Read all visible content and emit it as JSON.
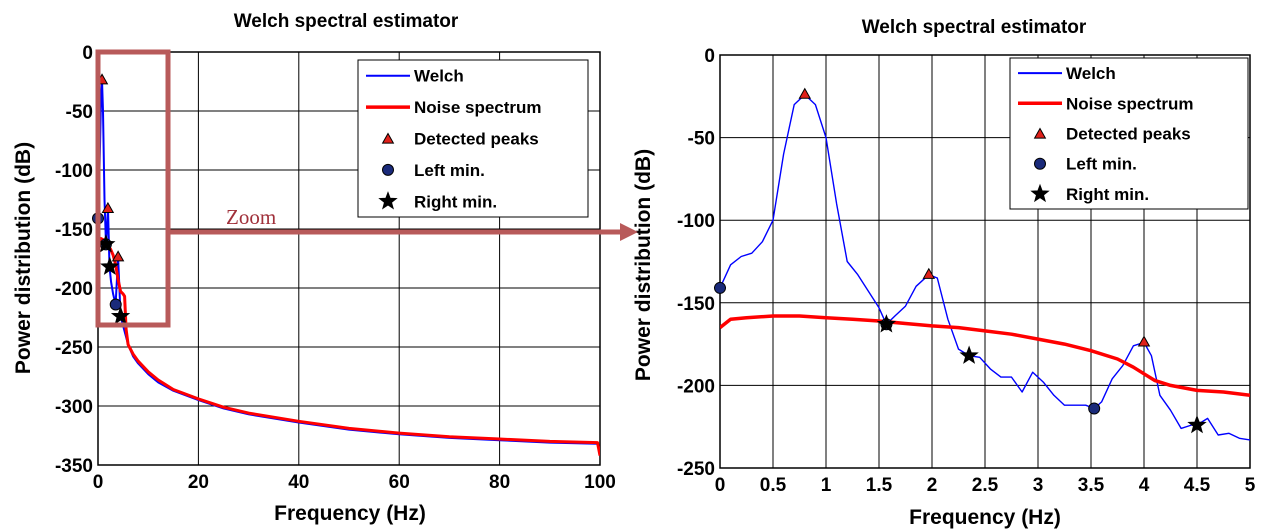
{
  "annotation": {
    "zoom_label": "Zoom",
    "arrow_color": "#b85a5a"
  },
  "colors": {
    "welch": "#0000ff",
    "noise": "#ff0000",
    "peak_fill": "#e0201a",
    "left_min_fill": "#1a2a7a",
    "star": "#000000",
    "grid": "#000000"
  },
  "chart_data": [
    {
      "type": "line",
      "title": "Welch spectral estimator",
      "xlabel": "Frequency (Hz)",
      "ylabel": "Power distribution (dB)",
      "xlim": [
        0,
        100
      ],
      "ylim": [
        -350,
        0
      ],
      "xticks": [
        "0",
        "20",
        "40",
        "60",
        "80",
        "100"
      ],
      "yticks": [
        "0",
        "-50",
        "-100",
        "-150",
        "-200",
        "-250",
        "-300",
        "-350"
      ],
      "grid": true,
      "legend_position": "top-right",
      "legend": [
        "Welch",
        "Noise spectrum",
        "Detected peaks",
        "Left min.",
        "Right min."
      ],
      "series": [
        {
          "name": "Welch",
          "x": [
            0,
            0.3,
            0.6,
            0.8,
            1.0,
            1.3,
            1.6,
            2.0,
            2.3,
            2.6,
            3.0,
            3.5,
            4.0,
            4.5,
            5,
            6,
            7,
            8,
            10,
            12,
            15,
            20,
            25,
            30,
            40,
            50,
            60,
            70,
            80,
            90,
            99.5,
            100
          ],
          "y": [
            -141,
            -100,
            -40,
            -24,
            -50,
            -125,
            -163,
            -133,
            -182,
            -195,
            -205,
            -214,
            -174,
            -224,
            -232,
            -248,
            -258,
            -264,
            -273,
            -280,
            -287,
            -295,
            -302,
            -307,
            -314,
            -320,
            -324,
            -327,
            -329,
            -331,
            -332,
            -337
          ]
        },
        {
          "name": "Noise spectrum",
          "x": [
            0,
            0.5,
            1.0,
            1.5,
            2.0,
            2.5,
            3.0,
            3.5,
            4.0,
            4.5,
            5,
            5.3,
            5.6,
            6,
            7,
            8,
            10,
            12,
            15,
            20,
            25,
            30,
            40,
            50,
            60,
            70,
            80,
            90,
            99.5,
            100
          ],
          "y": [
            -165,
            -158,
            -159,
            -161,
            -164,
            -167,
            -172,
            -180,
            -193,
            -203,
            -205,
            -207,
            -235,
            -248,
            -256,
            -262,
            -271,
            -278,
            -286,
            -294,
            -301,
            -306,
            -313,
            -319,
            -323,
            -326,
            -328,
            -330,
            -331,
            -342
          ]
        }
      ],
      "detected_peaks": [
        {
          "x": 0.8,
          "y": -24
        },
        {
          "x": 1.97,
          "y": -133
        },
        {
          "x": 4.0,
          "y": -174
        }
      ],
      "left_min": [
        {
          "x": 0.0,
          "y": -141
        },
        {
          "x": 1.57,
          "y": -163
        },
        {
          "x": 3.53,
          "y": -214
        }
      ],
      "right_min": [
        {
          "x": 1.57,
          "y": -163
        },
        {
          "x": 2.35,
          "y": -182
        },
        {
          "x": 4.5,
          "y": -224
        }
      ]
    },
    {
      "type": "line",
      "title": "Welch spectral estimator",
      "xlabel": "Frequency (Hz)",
      "ylabel": "Power distribution (dB)",
      "xlim": [
        0,
        5
      ],
      "ylim": [
        -250,
        0
      ],
      "xticks": [
        "0",
        "0.5",
        "1",
        "1.5",
        "2",
        "2.5",
        "3",
        "3.5",
        "4",
        "4.5",
        "5"
      ],
      "yticks": [
        "0",
        "-50",
        "-100",
        "-150",
        "-200",
        "-250"
      ],
      "grid": true,
      "legend_position": "top-right",
      "legend": [
        "Welch",
        "Noise spectrum",
        "Detected peaks",
        "Left min.",
        "Right min."
      ],
      "series": [
        {
          "name": "Welch",
          "x": [
            0,
            0.1,
            0.2,
            0.3,
            0.4,
            0.5,
            0.6,
            0.7,
            0.8,
            0.9,
            1.0,
            1.1,
            1.2,
            1.3,
            1.4,
            1.5,
            1.57,
            1.65,
            1.75,
            1.85,
            1.97,
            2.05,
            2.15,
            2.25,
            2.35,
            2.45,
            2.55,
            2.65,
            2.75,
            2.85,
            2.95,
            3.05,
            3.15,
            3.25,
            3.35,
            3.45,
            3.53,
            3.6,
            3.7,
            3.8,
            3.9,
            4.0,
            4.07,
            4.15,
            4.25,
            4.35,
            4.45,
            4.5,
            4.6,
            4.7,
            4.8,
            4.9,
            5.0
          ],
          "y": [
            -141,
            -127,
            -122,
            -120,
            -113,
            -100,
            -60,
            -30,
            -24,
            -30,
            -50,
            -90,
            -125,
            -133,
            -143,
            -153,
            -163,
            -158,
            -152,
            -140,
            -133,
            -135,
            -160,
            -178,
            -182,
            -183,
            -190,
            -195,
            -195,
            -204,
            -192,
            -198,
            -206,
            -212,
            -212,
            -212,
            -214,
            -210,
            -196,
            -188,
            -176,
            -174,
            -182,
            -206,
            -215,
            -226,
            -224,
            -224,
            -220,
            -230,
            -229,
            -232,
            -233
          ]
        },
        {
          "name": "Noise spectrum",
          "x": [
            0,
            0.1,
            0.25,
            0.5,
            0.75,
            1.0,
            1.25,
            1.5,
            1.75,
            2.0,
            2.25,
            2.5,
            2.75,
            3.0,
            3.25,
            3.5,
            3.75,
            3.9,
            4.0,
            4.1,
            4.25,
            4.5,
            4.75,
            5.0
          ],
          "y": [
            -165,
            -160,
            -159,
            -158,
            -158,
            -159,
            -160,
            -161,
            -162.5,
            -164,
            -165,
            -167,
            -169,
            -172,
            -175,
            -179,
            -184,
            -189,
            -193,
            -197,
            -200,
            -203,
            -204,
            -206
          ]
        }
      ],
      "detected_peaks": [
        {
          "x": 0.8,
          "y": -24
        },
        {
          "x": 1.97,
          "y": -133
        },
        {
          "x": 4.0,
          "y": -174
        }
      ],
      "left_min": [
        {
          "x": 0.0,
          "y": -141
        },
        {
          "x": 1.57,
          "y": -163
        },
        {
          "x": 3.53,
          "y": -214
        }
      ],
      "right_min": [
        {
          "x": 1.57,
          "y": -163
        },
        {
          "x": 2.35,
          "y": -182
        },
        {
          "x": 4.5,
          "y": -224
        }
      ]
    }
  ]
}
